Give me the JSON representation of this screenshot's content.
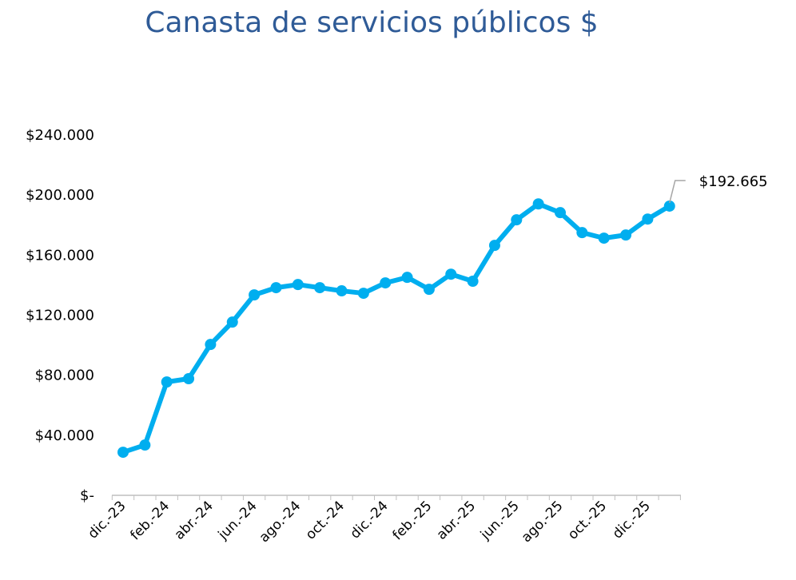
{
  "chart_data": {
    "type": "line",
    "title": "Canasta de servicios públicos $",
    "xlabel": "",
    "ylabel": "",
    "x": [
      "dic.-23",
      "ene.-24",
      "feb.-24",
      "mar.-24",
      "abr.-24",
      "may.-24",
      "jun.-24",
      "jul.-24",
      "ago.-24",
      "sep.-24",
      "oct.-24",
      "nov.-24",
      "dic.-24",
      "ene.-25",
      "feb.-25",
      "mar.-25",
      "abr.-25",
      "may.-25",
      "jun.-25",
      "jul.-25",
      "ago.-25",
      "sep.-25",
      "oct.-25",
      "nov.-25",
      "dic.-25",
      "ene.-26"
    ],
    "x_tick_labels": [
      "dic.-23",
      "feb.-24",
      "abr.-24",
      "jun.-24",
      "ago.-24",
      "oct.-24",
      "dic.-24",
      "feb.-25",
      "abr.-25",
      "jun.-25",
      "ago.-25",
      "oct.-25",
      "dic.-25"
    ],
    "series": [
      {
        "values": [
          28700,
          33500,
          75500,
          77700,
          100500,
          115400,
          133500,
          138300,
          140400,
          138300,
          136200,
          134600,
          141500,
          145200,
          137200,
          147300,
          142600,
          166500,
          183500,
          194100,
          188300,
          175000,
          171300,
          173400,
          184000,
          192665
        ],
        "color": "#00aeef"
      }
    ],
    "y_tick_labels": [
      "$-",
      "$40.000",
      "$80.000",
      "$120.000",
      "$160.000",
      "$200.000",
      "$240.000"
    ],
    "y_ticks": [
      0,
      40000,
      80000,
      120000,
      160000,
      200000,
      240000
    ],
    "ylim": [
      0,
      240000
    ],
    "grid": false,
    "legend": "none",
    "annotation": {
      "text": "$192.665",
      "point": "ene.-26"
    }
  }
}
